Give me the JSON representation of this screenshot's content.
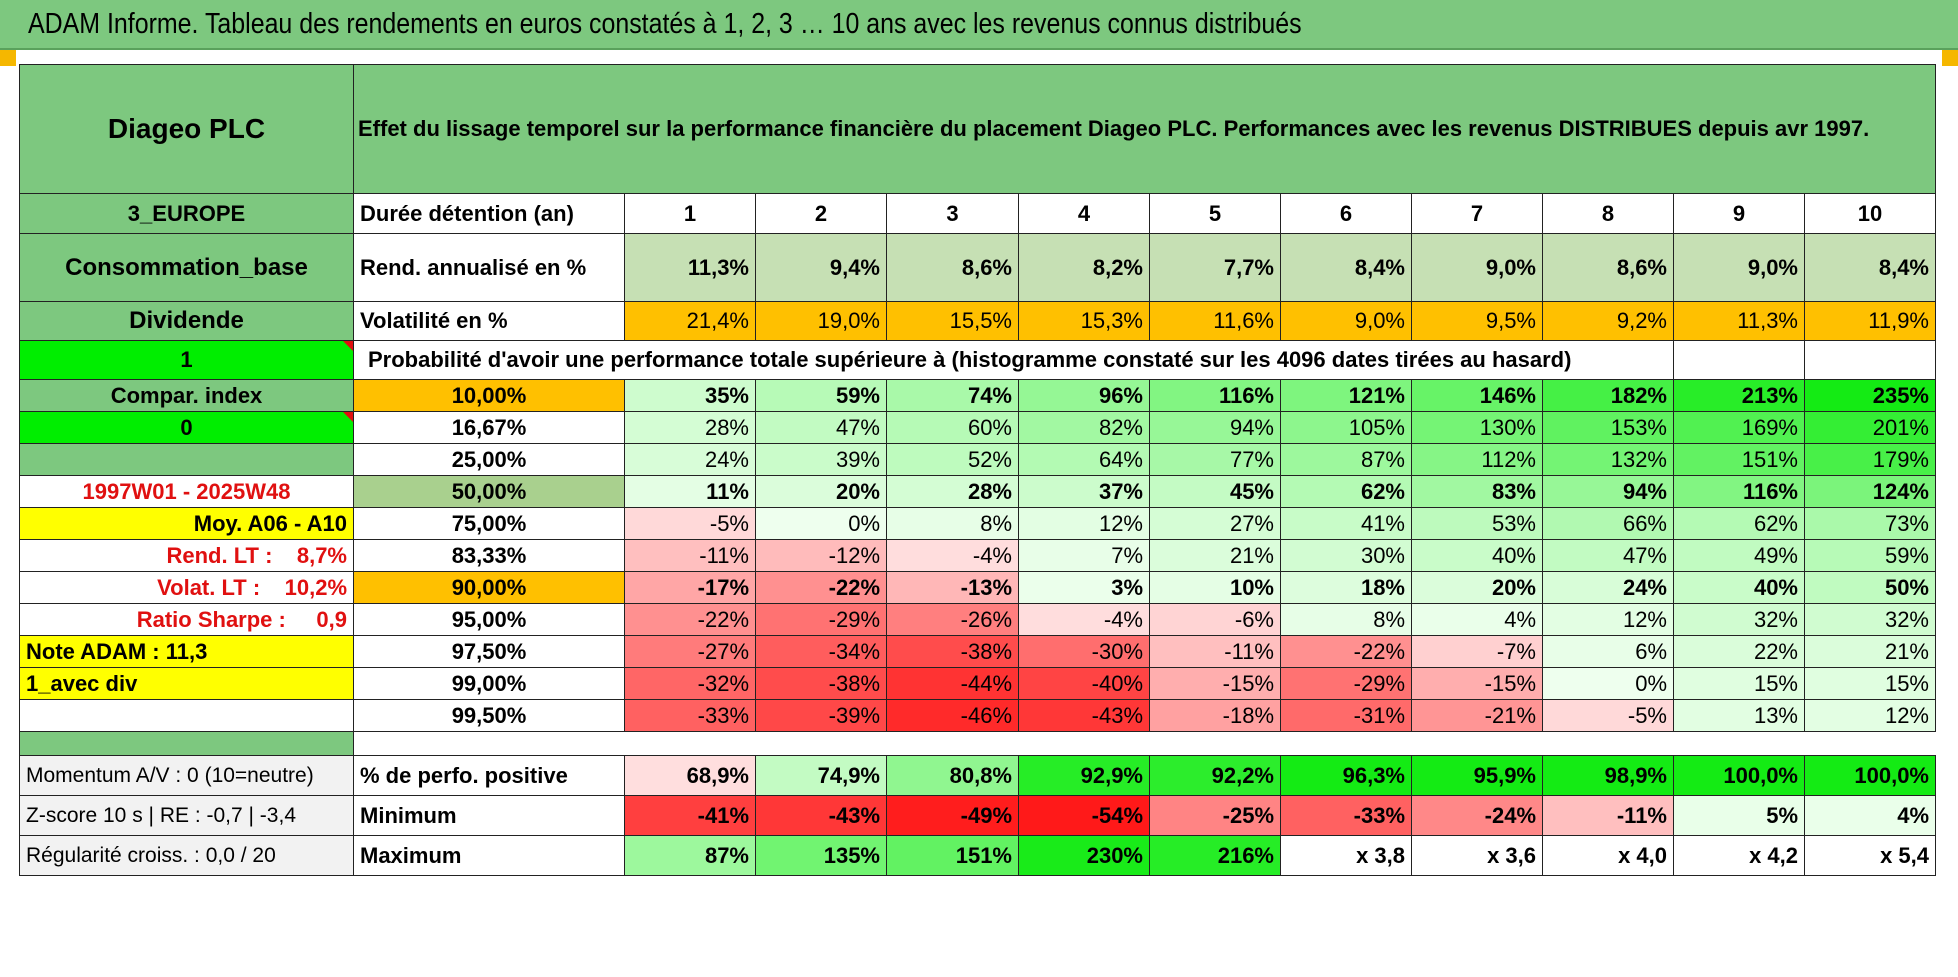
{
  "title": "ADAM Informe. Tableau des rendements en euros constatés à 1, 2, 3 … 10 ans avec les revenus connus distribués",
  "header": {
    "name": "Diageo PLC",
    "description": "Effet du lissage temporel sur la performance financière du placement Diageo PLC. Performances avec les revenus DISTRIBUES depuis avr 1997."
  },
  "left": {
    "zone": "3_EUROPE",
    "sector": "Consommation_base",
    "type": "Dividende",
    "flag1": "1",
    "compar_label": "Compar. index",
    "flag2": "0",
    "empty": "",
    "period": "1997W01 - 2025W48",
    "moy": "Moy. A06 - A10",
    "rend_lt": "Rend. LT :    8,7%",
    "volat_lt": "Volat. LT :    10,2%",
    "sharpe": "Ratio Sharpe :     0,9",
    "note": "Note ADAM : 11,3",
    "avec_div": "1_avec div"
  },
  "stats": {
    "duration_label": "Durée détention (an)",
    "years": [
      "1",
      "2",
      "3",
      "4",
      "5",
      "6",
      "7",
      "8",
      "9",
      "10"
    ],
    "rend_label": "Rend. annualisé en %",
    "rend": [
      "11,3%",
      "9,4%",
      "8,6%",
      "8,2%",
      "7,7%",
      "8,4%",
      "9,0%",
      "8,6%",
      "9,0%",
      "8,4%"
    ],
    "vol_label": "Volatilité en %",
    "vol": [
      "21,4%",
      "19,0%",
      "15,5%",
      "15,3%",
      "11,6%",
      "9,0%",
      "9,5%",
      "9,2%",
      "11,3%",
      "11,9%"
    ],
    "prob_header": "Probabilité d'avoir une performance totale supérieure à (histogramme constaté sur les 4096 dates tirées au hasard)"
  },
  "prob_rows": [
    {
      "p": "10,00%",
      "v": [
        "35%",
        "59%",
        "74%",
        "96%",
        "116%",
        "121%",
        "146%",
        "182%",
        "213%",
        "235%"
      ]
    },
    {
      "p": "16,67%",
      "v": [
        "28%",
        "47%",
        "60%",
        "82%",
        "94%",
        "105%",
        "130%",
        "153%",
        "169%",
        "201%"
      ]
    },
    {
      "p": "25,00%",
      "v": [
        "24%",
        "39%",
        "52%",
        "64%",
        "77%",
        "87%",
        "112%",
        "132%",
        "151%",
        "179%"
      ]
    },
    {
      "p": "50,00%",
      "v": [
        "11%",
        "20%",
        "28%",
        "37%",
        "45%",
        "62%",
        "83%",
        "94%",
        "116%",
        "124%"
      ]
    },
    {
      "p": "75,00%",
      "v": [
        "-5%",
        "0%",
        "8%",
        "12%",
        "27%",
        "41%",
        "53%",
        "66%",
        "62%",
        "73%"
      ]
    },
    {
      "p": "83,33%",
      "v": [
        "-11%",
        "-12%",
        "-4%",
        "7%",
        "21%",
        "30%",
        "40%",
        "47%",
        "49%",
        "59%"
      ]
    },
    {
      "p": "90,00%",
      "v": [
        "-17%",
        "-22%",
        "-13%",
        "3%",
        "10%",
        "18%",
        "20%",
        "24%",
        "40%",
        "50%"
      ]
    },
    {
      "p": "95,00%",
      "v": [
        "-22%",
        "-29%",
        "-26%",
        "-4%",
        "-6%",
        "8%",
        "4%",
        "12%",
        "32%",
        "32%"
      ]
    },
    {
      "p": "97,50%",
      "v": [
        "-27%",
        "-34%",
        "-38%",
        "-30%",
        "-11%",
        "-22%",
        "-7%",
        "6%",
        "22%",
        "21%"
      ]
    },
    {
      "p": "99,00%",
      "v": [
        "-32%",
        "-38%",
        "-44%",
        "-40%",
        "-15%",
        "-29%",
        "-15%",
        "0%",
        "15%",
        "15%"
      ]
    },
    {
      "p": "99,50%",
      "v": [
        "-33%",
        "-39%",
        "-46%",
        "-43%",
        "-18%",
        "-31%",
        "-21%",
        "-5%",
        "13%",
        "12%"
      ]
    }
  ],
  "bottom": {
    "momentum": "Momentum A/V : 0 (10=neutre)",
    "zscore": "Z-score 10 s | RE : -0,7 | -3,4",
    "regularite": "Régularité croiss. : 0,0 / 20",
    "pos_label": "% de perfo. positive",
    "pos": [
      "68,9%",
      "74,9%",
      "80,8%",
      "92,9%",
      "92,2%",
      "96,3%",
      "95,9%",
      "98,9%",
      "100,0%",
      "100,0%"
    ],
    "min_label": "Minimum",
    "min": [
      "-41%",
      "-43%",
      "-49%",
      "-54%",
      "-25%",
      "-33%",
      "-24%",
      "-11%",
      "5%",
      "4%"
    ],
    "max_label": "Maximum",
    "max": [
      "87%",
      "135%",
      "151%",
      "230%",
      "216%",
      "x 3,8",
      "x 3,6",
      "x 4,0",
      "x 4,2",
      "x 5,4"
    ]
  },
  "colors": {
    "header_green": "#7dc87f",
    "light_green": "#c6e0b4",
    "bright_green": "#00ee00",
    "yellow": "#ffff00",
    "orange": "#ffc000",
    "label_red": "#e01010"
  }
}
